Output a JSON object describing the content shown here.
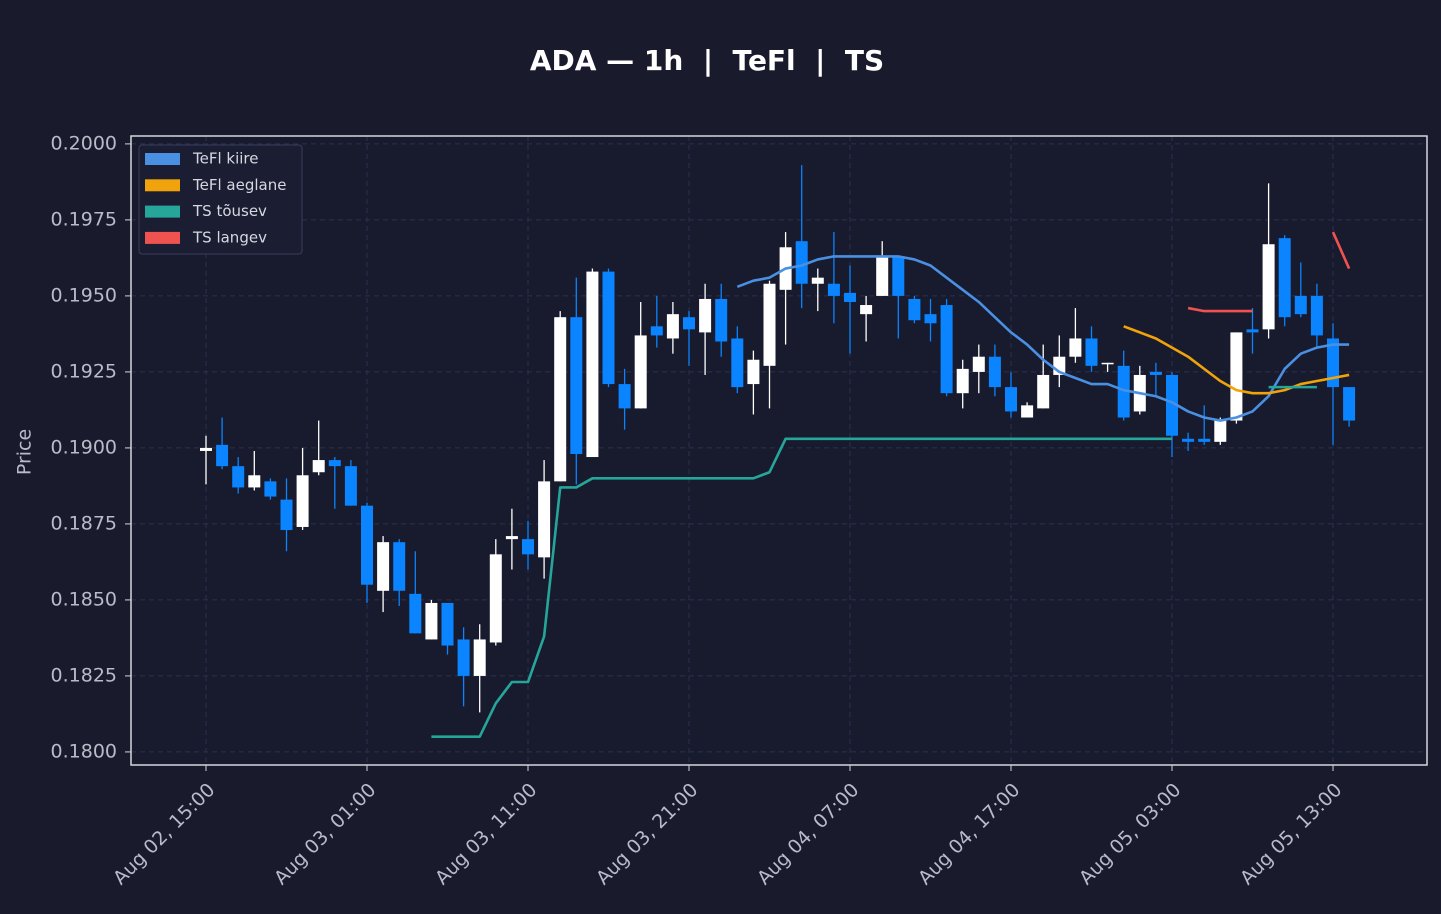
{
  "chart_data": {
    "type": "candlestick",
    "title": "ADA — 1h  |  TeFl  |  TS",
    "y_label": "Price",
    "x": [
      "Aug 02, 15:00",
      "Aug 02, 16:00",
      "Aug 02, 17:00",
      "Aug 02, 18:00",
      "Aug 02, 19:00",
      "Aug 02, 20:00",
      "Aug 02, 21:00",
      "Aug 02, 22:00",
      "Aug 02, 23:00",
      "Aug 03, 00:00",
      "Aug 03, 01:00",
      "Aug 03, 02:00",
      "Aug 03, 03:00",
      "Aug 03, 04:00",
      "Aug 03, 05:00",
      "Aug 03, 06:00",
      "Aug 03, 07:00",
      "Aug 03, 08:00",
      "Aug 03, 09:00",
      "Aug 03, 10:00",
      "Aug 03, 11:00",
      "Aug 03, 12:00",
      "Aug 03, 13:00",
      "Aug 03, 14:00",
      "Aug 03, 15:00",
      "Aug 03, 16:00",
      "Aug 03, 17:00",
      "Aug 03, 18:00",
      "Aug 03, 19:00",
      "Aug 03, 20:00",
      "Aug 03, 21:00",
      "Aug 03, 22:00",
      "Aug 03, 23:00",
      "Aug 04, 00:00",
      "Aug 04, 01:00",
      "Aug 04, 02:00",
      "Aug 04, 03:00",
      "Aug 04, 04:00",
      "Aug 04, 05:00",
      "Aug 04, 06:00",
      "Aug 04, 07:00",
      "Aug 04, 08:00",
      "Aug 04, 09:00",
      "Aug 04, 10:00",
      "Aug 04, 11:00",
      "Aug 04, 12:00",
      "Aug 04, 13:00",
      "Aug 04, 14:00",
      "Aug 04, 15:00",
      "Aug 04, 16:00",
      "Aug 04, 17:00",
      "Aug 04, 18:00",
      "Aug 04, 19:00",
      "Aug 04, 20:00",
      "Aug 04, 21:00",
      "Aug 04, 22:00",
      "Aug 04, 23:00",
      "Aug 05, 00:00",
      "Aug 05, 01:00",
      "Aug 05, 02:00",
      "Aug 05, 03:00",
      "Aug 05, 04:00",
      "Aug 05, 05:00",
      "Aug 05, 06:00",
      "Aug 05, 07:00",
      "Aug 05, 08:00",
      "Aug 05, 09:00",
      "Aug 05, 10:00",
      "Aug 05, 11:00",
      "Aug 05, 12:00",
      "Aug 05, 13:00",
      "Aug 05, 14:00"
    ],
    "open": [
      0.1899,
      0.1901,
      0.1894,
      0.1887,
      0.1889,
      0.1883,
      0.1874,
      0.1892,
      0.1896,
      0.1894,
      0.1881,
      0.1853,
      0.1869,
      0.1852,
      0.1837,
      0.1849,
      0.1837,
      0.1825,
      0.1836,
      0.187,
      0.187,
      0.1864,
      0.1889,
      0.1943,
      0.1897,
      0.1958,
      0.1921,
      0.1913,
      0.194,
      0.1936,
      0.1943,
      0.1938,
      0.1949,
      0.1936,
      0.1921,
      0.1927,
      0.1952,
      0.1968,
      0.1954,
      0.1954,
      0.1951,
      0.1944,
      0.195,
      0.1963,
      0.1949,
      0.1944,
      0.1947,
      0.1918,
      0.1925,
      0.193,
      0.192,
      0.191,
      0.1913,
      0.1924,
      0.193,
      0.1936,
      0.1928,
      0.1927,
      0.1912,
      0.1925,
      0.1924,
      0.1903,
      0.1903,
      0.1902,
      0.1909,
      0.1939,
      0.1939,
      0.1969,
      0.195,
      0.195,
      0.1936,
      0.192
    ],
    "high": [
      0.1904,
      0.191,
      0.1897,
      0.1899,
      0.189,
      0.189,
      0.19,
      0.1909,
      0.1897,
      0.1896,
      0.1882,
      0.1871,
      0.187,
      0.1866,
      0.185,
      0.1849,
      0.1841,
      0.1842,
      0.187,
      0.188,
      0.1876,
      0.1896,
      0.1945,
      0.1956,
      0.1959,
      0.1959,
      0.1926,
      0.1948,
      0.195,
      0.1948,
      0.1945,
      0.1954,
      0.1954,
      0.194,
      0.1932,
      0.1955,
      0.1971,
      0.1993,
      0.1959,
      0.1971,
      0.196,
      0.195,
      0.1968,
      0.1963,
      0.195,
      0.1949,
      0.1949,
      0.1929,
      0.1934,
      0.1934,
      0.1925,
      0.1915,
      0.1934,
      0.1937,
      0.1946,
      0.194,
      0.1928,
      0.1932,
      0.1927,
      0.1928,
      0.1925,
      0.1905,
      0.1914,
      0.191,
      0.1938,
      0.1946,
      0.1987,
      0.197,
      0.1961,
      0.1954,
      0.1941,
      0.192
    ],
    "low": [
      0.1888,
      0.1893,
      0.1885,
      0.1886,
      0.1883,
      0.1866,
      0.1873,
      0.1891,
      0.188,
      0.1881,
      0.1849,
      0.1846,
      0.1848,
      0.1839,
      0.1837,
      0.1832,
      0.1815,
      0.1813,
      0.1835,
      0.186,
      0.186,
      0.1857,
      0.1889,
      0.1888,
      0.1897,
      0.192,
      0.1906,
      0.1913,
      0.1933,
      0.1931,
      0.1927,
      0.1924,
      0.193,
      0.1918,
      0.1911,
      0.1913,
      0.1934,
      0.1946,
      0.1945,
      0.1941,
      0.1931,
      0.1935,
      0.195,
      0.1936,
      0.1941,
      0.1935,
      0.1917,
      0.1913,
      0.1918,
      0.1917,
      0.191,
      0.191,
      0.1913,
      0.192,
      0.1928,
      0.1925,
      0.1925,
      0.1909,
      0.1911,
      0.1917,
      0.1897,
      0.1899,
      0.1901,
      0.1901,
      0.1908,
      0.1931,
      0.1936,
      0.194,
      0.1943,
      0.1933,
      0.1901,
      0.1907
    ],
    "close": [
      0.19,
      0.1894,
      0.1887,
      0.1891,
      0.1884,
      0.1873,
      0.1891,
      0.1896,
      0.1894,
      0.1881,
      0.1855,
      0.1869,
      0.1853,
      0.1839,
      0.1849,
      0.1835,
      0.1825,
      0.1837,
      0.1865,
      0.1871,
      0.1865,
      0.1889,
      0.1943,
      0.1898,
      0.1958,
      0.1921,
      0.1913,
      0.1937,
      0.1937,
      0.1944,
      0.1939,
      0.1949,
      0.1935,
      0.192,
      0.1929,
      0.1954,
      0.1966,
      0.1954,
      0.1956,
      0.195,
      0.1948,
      0.1947,
      0.1963,
      0.195,
      0.1942,
      0.1941,
      0.1918,
      0.1926,
      0.193,
      0.192,
      0.1912,
      0.1914,
      0.1924,
      0.193,
      0.1936,
      0.1927,
      0.1928,
      0.191,
      0.1924,
      0.1924,
      0.1904,
      0.1902,
      0.1902,
      0.1909,
      0.1938,
      0.1938,
      0.1967,
      0.1943,
      0.1944,
      0.1937,
      0.192,
      0.1909
    ],
    "up_color": "#ffffff",
    "down_color": "#0a84ff",
    "series": [
      {
        "name": "TeFl kiire",
        "color": "#4a90e2",
        "values": [
          null,
          null,
          null,
          null,
          null,
          null,
          null,
          null,
          null,
          null,
          null,
          null,
          null,
          null,
          null,
          null,
          null,
          null,
          null,
          null,
          null,
          null,
          null,
          null,
          null,
          null,
          null,
          null,
          null,
          null,
          null,
          null,
          null,
          0.1953,
          0.1955,
          0.1956,
          0.1959,
          0.196,
          0.1962,
          0.1963,
          0.1963,
          0.1963,
          0.1963,
          0.1963,
          0.1962,
          0.196,
          0.1956,
          0.1952,
          0.1948,
          0.1943,
          0.1938,
          0.1934,
          0.1929,
          0.1925,
          0.1923,
          0.1921,
          0.1921,
          0.1919,
          0.1918,
          0.1917,
          0.1915,
          0.1912,
          0.191,
          0.1909,
          0.191,
          0.1912,
          0.1917,
          0.1926,
          0.1931,
          0.1933,
          0.1934,
          0.1934
        ]
      },
      {
        "name": "TeFl aeglane",
        "color": "#f0a30a",
        "values": [
          null,
          null,
          null,
          null,
          null,
          null,
          null,
          null,
          null,
          null,
          null,
          null,
          null,
          null,
          null,
          null,
          null,
          null,
          null,
          null,
          null,
          null,
          null,
          null,
          null,
          null,
          null,
          null,
          null,
          null,
          null,
          null,
          null,
          null,
          null,
          null,
          null,
          null,
          null,
          null,
          null,
          null,
          null,
          null,
          null,
          null,
          null,
          null,
          null,
          null,
          null,
          null,
          null,
          null,
          null,
          null,
          null,
          0.194,
          0.1938,
          0.1936,
          0.1933,
          0.193,
          0.1926,
          0.1922,
          0.1919,
          0.1918,
          0.1918,
          0.1919,
          0.1921,
          0.1922,
          0.1923,
          0.1924
        ]
      },
      {
        "name": "TS tõusev",
        "color": "#26a69a",
        "values": [
          null,
          null,
          null,
          null,
          null,
          null,
          null,
          null,
          null,
          null,
          null,
          null,
          null,
          null,
          0.1805,
          0.1805,
          0.1805,
          0.1805,
          0.1816,
          0.1823,
          0.1823,
          0.1838,
          0.1887,
          0.1887,
          0.189,
          0.189,
          0.189,
          0.189,
          0.189,
          0.189,
          0.189,
          0.189,
          0.189,
          0.189,
          0.189,
          0.1892,
          0.1903,
          0.1903,
          0.1903,
          0.1903,
          0.1903,
          0.1903,
          0.1903,
          0.1903,
          0.1903,
          0.1903,
          0.1903,
          0.1903,
          0.1903,
          0.1903,
          0.1903,
          0.1903,
          0.1903,
          0.1903,
          0.1903,
          0.1903,
          0.1903,
          0.1903,
          0.1903,
          0.1903,
          0.1903,
          null,
          null,
          null,
          null,
          null,
          0.192,
          0.192,
          0.192,
          0.192,
          null,
          null
        ]
      },
      {
        "name": "TS langev",
        "color": "#ef5350",
        "values": [
          null,
          null,
          null,
          null,
          null,
          null,
          null,
          null,
          null,
          null,
          null,
          null,
          null,
          null,
          null,
          null,
          null,
          null,
          null,
          null,
          null,
          null,
          null,
          null,
          null,
          null,
          null,
          null,
          null,
          null,
          null,
          null,
          null,
          null,
          null,
          null,
          null,
          null,
          null,
          null,
          null,
          null,
          null,
          null,
          null,
          null,
          null,
          null,
          null,
          null,
          null,
          null,
          null,
          null,
          null,
          null,
          null,
          null,
          null,
          null,
          null,
          0.1946,
          0.1945,
          0.1945,
          0.1945,
          0.1945,
          null,
          null,
          null,
          null,
          0.1971,
          0.1959
        ]
      }
    ],
    "ylim": [
      0.17957,
      0.20026
    ],
    "yticks": [
      {
        "value": 0.18,
        "label": "0.1800"
      },
      0.1825,
      {
        "value": 0.185,
        "label": "0.1850"
      },
      0.1875,
      {
        "value": 0.19,
        "label": "0.1900"
      },
      0.1925,
      {
        "value": 0.195,
        "label": "0.1950"
      },
      0.1975,
      {
        "value": 0.2,
        "label": "0.2000"
      }
    ],
    "xticks": [
      "Aug 02, 15:00",
      "Aug 03, 01:00",
      "Aug 03, 11:00",
      "Aug 03, 21:00",
      "Aug 04, 07:00",
      "Aug 04, 17:00",
      "Aug 05, 03:00",
      "Aug 05, 13:00"
    ],
    "grid": true,
    "legend": "upper left"
  }
}
